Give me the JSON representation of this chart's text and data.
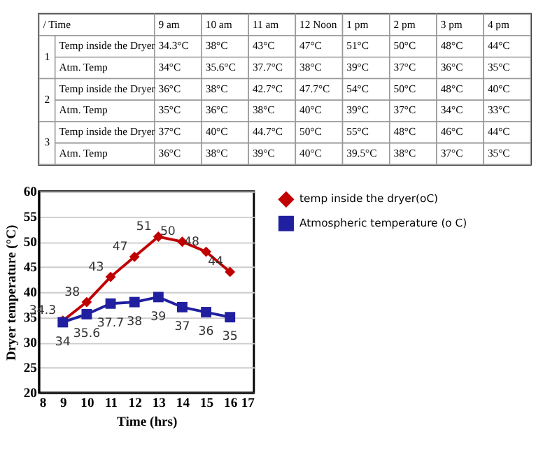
{
  "chart_data": [
    {
      "type": "other",
      "ylabel": "/ Time",
      "categories": [
        "9 am",
        "10  am",
        "11 am",
        "12 Noon",
        "1 pm",
        "2 pm",
        "3 pm",
        "4 pm"
      ],
      "y_categories": [
        "Temp inside the Dryer",
        "Atm. Temp",
        "Temp inside the Dryer",
        "Atm. Temp",
        "Temp inside the Dryer",
        "Atm. Temp"
      ],
      "y2_categories": [
        "1",
        null,
        "2",
        null,
        "3",
        null
      ],
      "cell_labels": [
        [
          "34.3°C",
          "38°C",
          "43°C",
          "47°C",
          "51°C",
          "50°C",
          "48°C",
          "44°C"
        ],
        [
          "34°C",
          "35.6°C",
          "37.7°C",
          "38°C",
          "39°C",
          "37°C",
          "36°C",
          "35°C"
        ],
        [
          "36°C",
          "38°C",
          "42.7°C",
          "47.7°C",
          "54°C",
          "50°C",
          "48°C",
          "40°C"
        ],
        [
          "35°C",
          "36°C",
          "38°C",
          "40°C",
          "39°C",
          "37°C",
          "34°C",
          "33°C"
        ],
        [
          "37°C",
          "40°C",
          "44.7°C",
          "50°C",
          "55°C",
          "48°C",
          "46°C",
          "44°C"
        ],
        [
          "36°C",
          "38°C",
          "39°C",
          "40°C",
          "39.5°C",
          "38°C",
          "37°C",
          "35°C"
        ]
      ]
    },
    {
      "type": "line",
      "xlabel": "Time (hrs)",
      "ylabel": "Dryer temperature (°C)",
      "x": [
        9,
        10,
        11,
        12,
        13,
        14,
        15,
        16
      ],
      "series": [
        {
          "name": "temp inside the dryer(oC)",
          "color": "#c00000",
          "marker": "diamond",
          "values": [
            34.3,
            38,
            43,
            47,
            51,
            50,
            48,
            44
          ]
        },
        {
          "name": "Atmospheric temperature (o C)",
          "color": "#1f1f9f",
          "marker": "square",
          "values": [
            34,
            35.6,
            37.7,
            38,
            39,
            37,
            36,
            35
          ]
        }
      ],
      "xlim": [
        8,
        17
      ],
      "xticks": [
        8,
        9,
        10,
        11,
        12,
        13,
        14,
        15,
        16,
        17
      ],
      "ylim": [
        20,
        60
      ],
      "yticks": [
        20,
        25,
        30,
        35,
        40,
        45,
        50,
        55,
        60
      ],
      "grid": "y",
      "legend": "right",
      "data_labels": true,
      "line_style": "solid"
    }
  ]
}
